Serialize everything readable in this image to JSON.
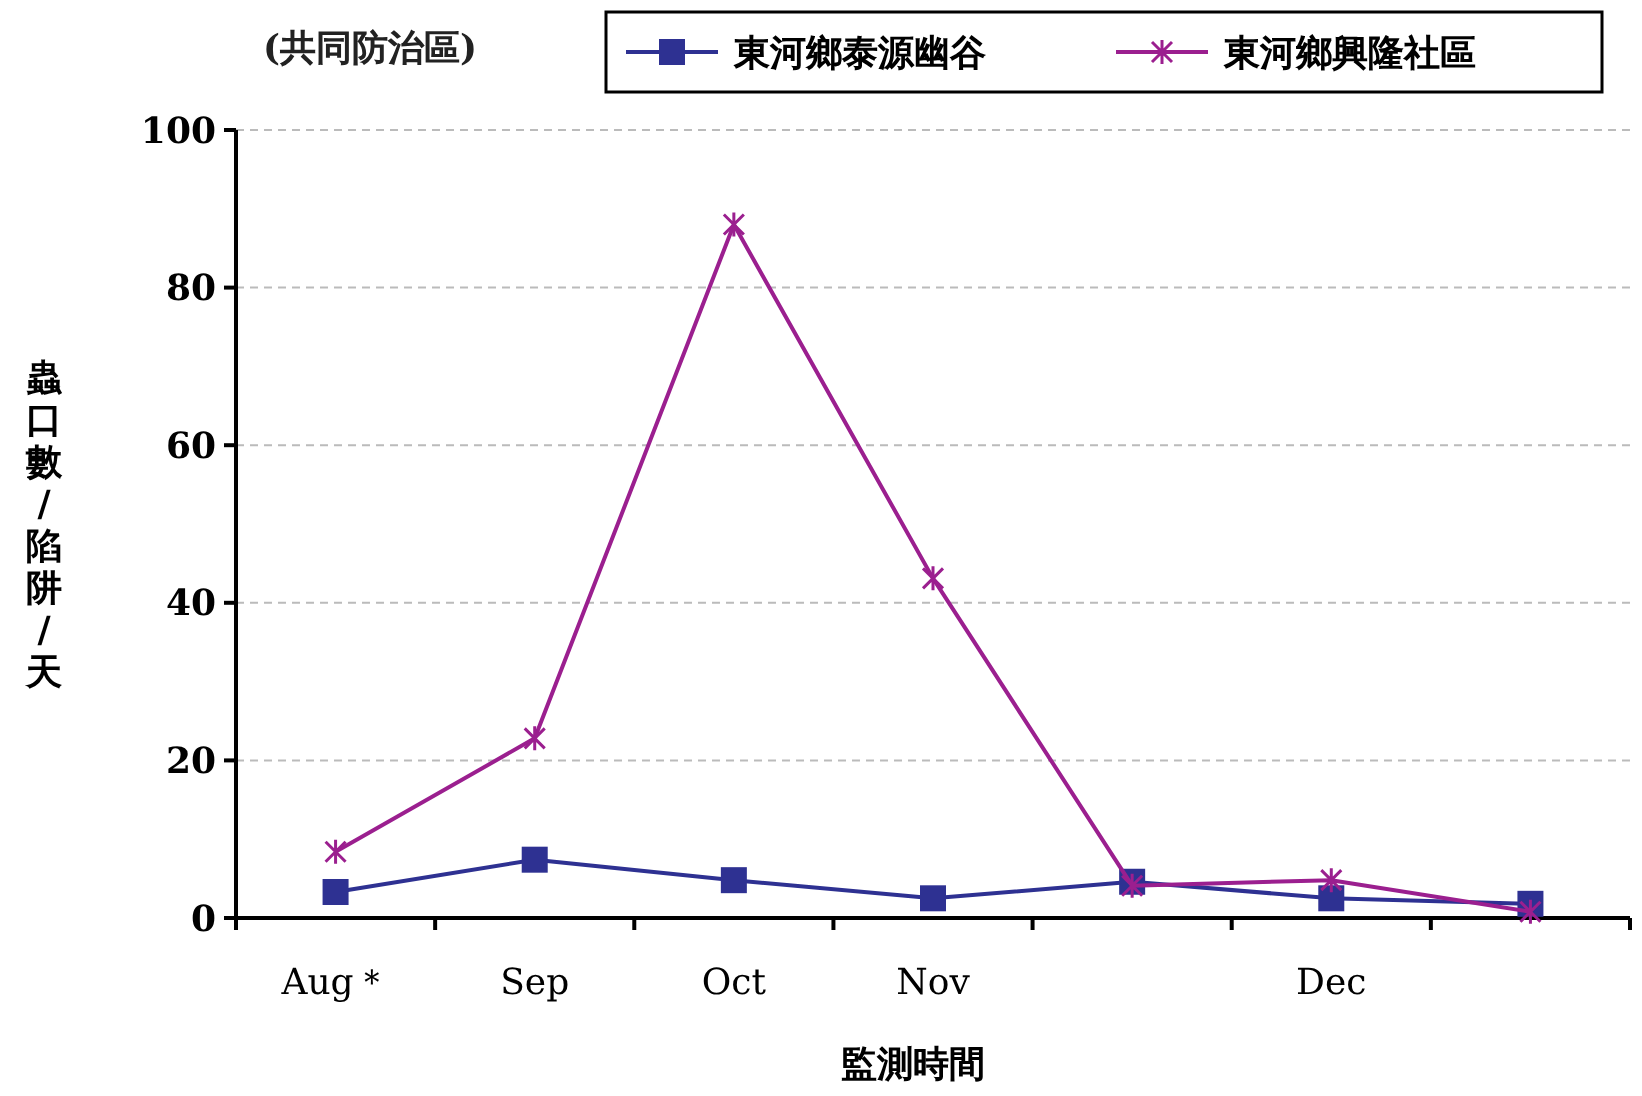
{
  "chart_data": {
    "type": "line",
    "title": "(共同防治區)",
    "xlabel": "監測時間",
    "ylabel": "蟲口數/陷阱/天",
    "categories": [
      "Aug＊",
      "Sep",
      "Oct",
      "Nov",
      null,
      "Dec",
      null
    ],
    "series": [
      {
        "name": "東河鄉泰源幽谷",
        "color": "#2e3192",
        "marker": "square",
        "values": [
          3.3,
          7.4,
          4.8,
          2.5,
          4.6,
          2.5,
          1.8
        ]
      },
      {
        "name": "東河鄉興隆社區",
        "color": "#9b1f8f",
        "marker": "cross",
        "values": [
          8.4,
          22.8,
          88,
          43.1,
          4.1,
          4.8,
          0.8
        ]
      }
    ],
    "ylim": [
      0,
      100
    ],
    "yticks": [
      0,
      20,
      40,
      60,
      80,
      100
    ],
    "grid": "y",
    "legend": "top right",
    "line_style": "solid"
  }
}
